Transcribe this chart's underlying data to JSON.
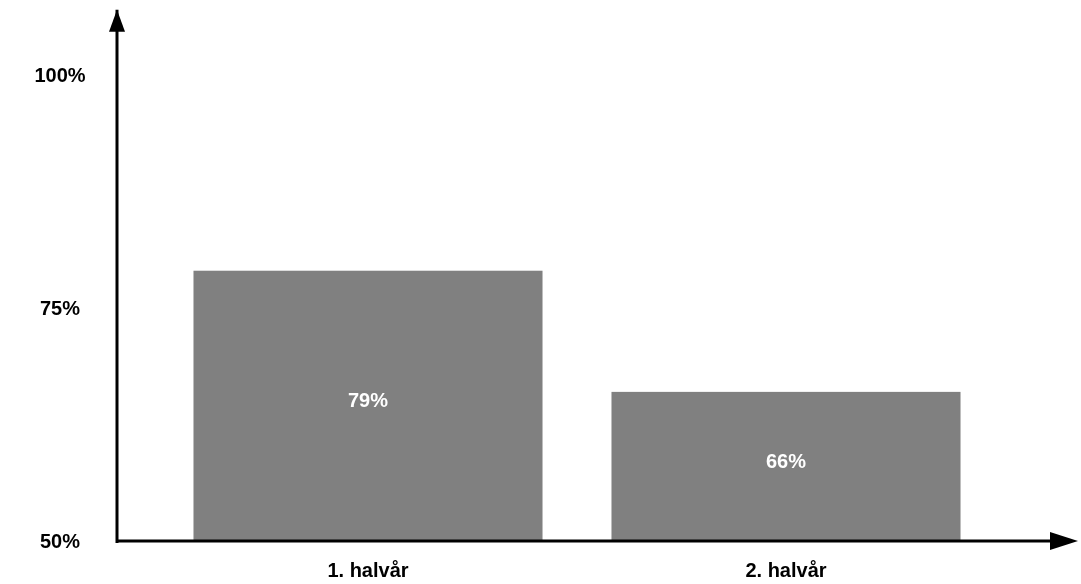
{
  "chart_data": {
    "type": "bar",
    "categories": [
      "1. halvår",
      "2. halvår"
    ],
    "values": [
      79,
      66
    ],
    "value_labels": [
      "79%",
      "66%"
    ],
    "color": "#808080",
    "ylim": [
      50,
      107
    ],
    "yticks": [
      {
        "value": 50,
        "label": "50%"
      },
      {
        "value": 75,
        "label": "75%"
      },
      {
        "value": 100,
        "label": "100%"
      }
    ]
  }
}
